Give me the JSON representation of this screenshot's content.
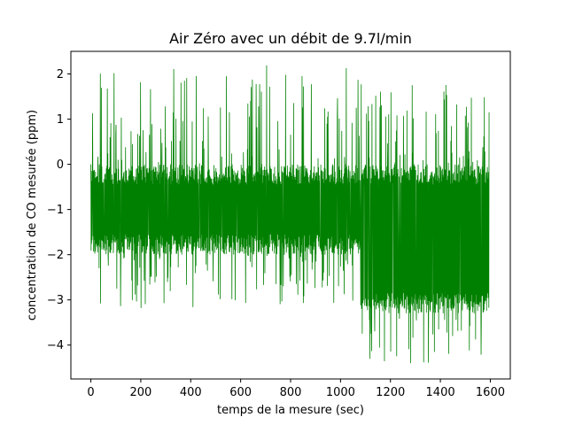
{
  "chart_data": {
    "type": "line",
    "title": "Air Zéro avec un débit de 9.7l/min",
    "xlabel": "temps de la mesure (sec)",
    "ylabel": "concentration de CO mesurée (ppm)",
    "xlim": [
      -80,
      1680
    ],
    "ylim": [
      -4.75,
      2.5
    ],
    "xticks": [
      0,
      200,
      400,
      600,
      800,
      1000,
      1200,
      1400,
      1600
    ],
    "yticks": [
      -4,
      -3,
      -2,
      -1,
      0,
      1,
      2
    ],
    "grid": false,
    "series": [
      {
        "color": "#008000",
        "x_range": [
          0,
          1595
        ],
        "n_points": 1596,
        "segments": [
          {
            "x_start": 0,
            "x_end": 1080,
            "low_level": -2.0,
            "high_level": 0.0,
            "spike_max": 2.2,
            "dip_min": -3.2
          },
          {
            "x_start": 1080,
            "x_end": 1595,
            "low_level": -3.3,
            "high_level": 0.0,
            "spike_max": 1.9,
            "dip_min": -4.4
          }
        ]
      }
    ]
  }
}
